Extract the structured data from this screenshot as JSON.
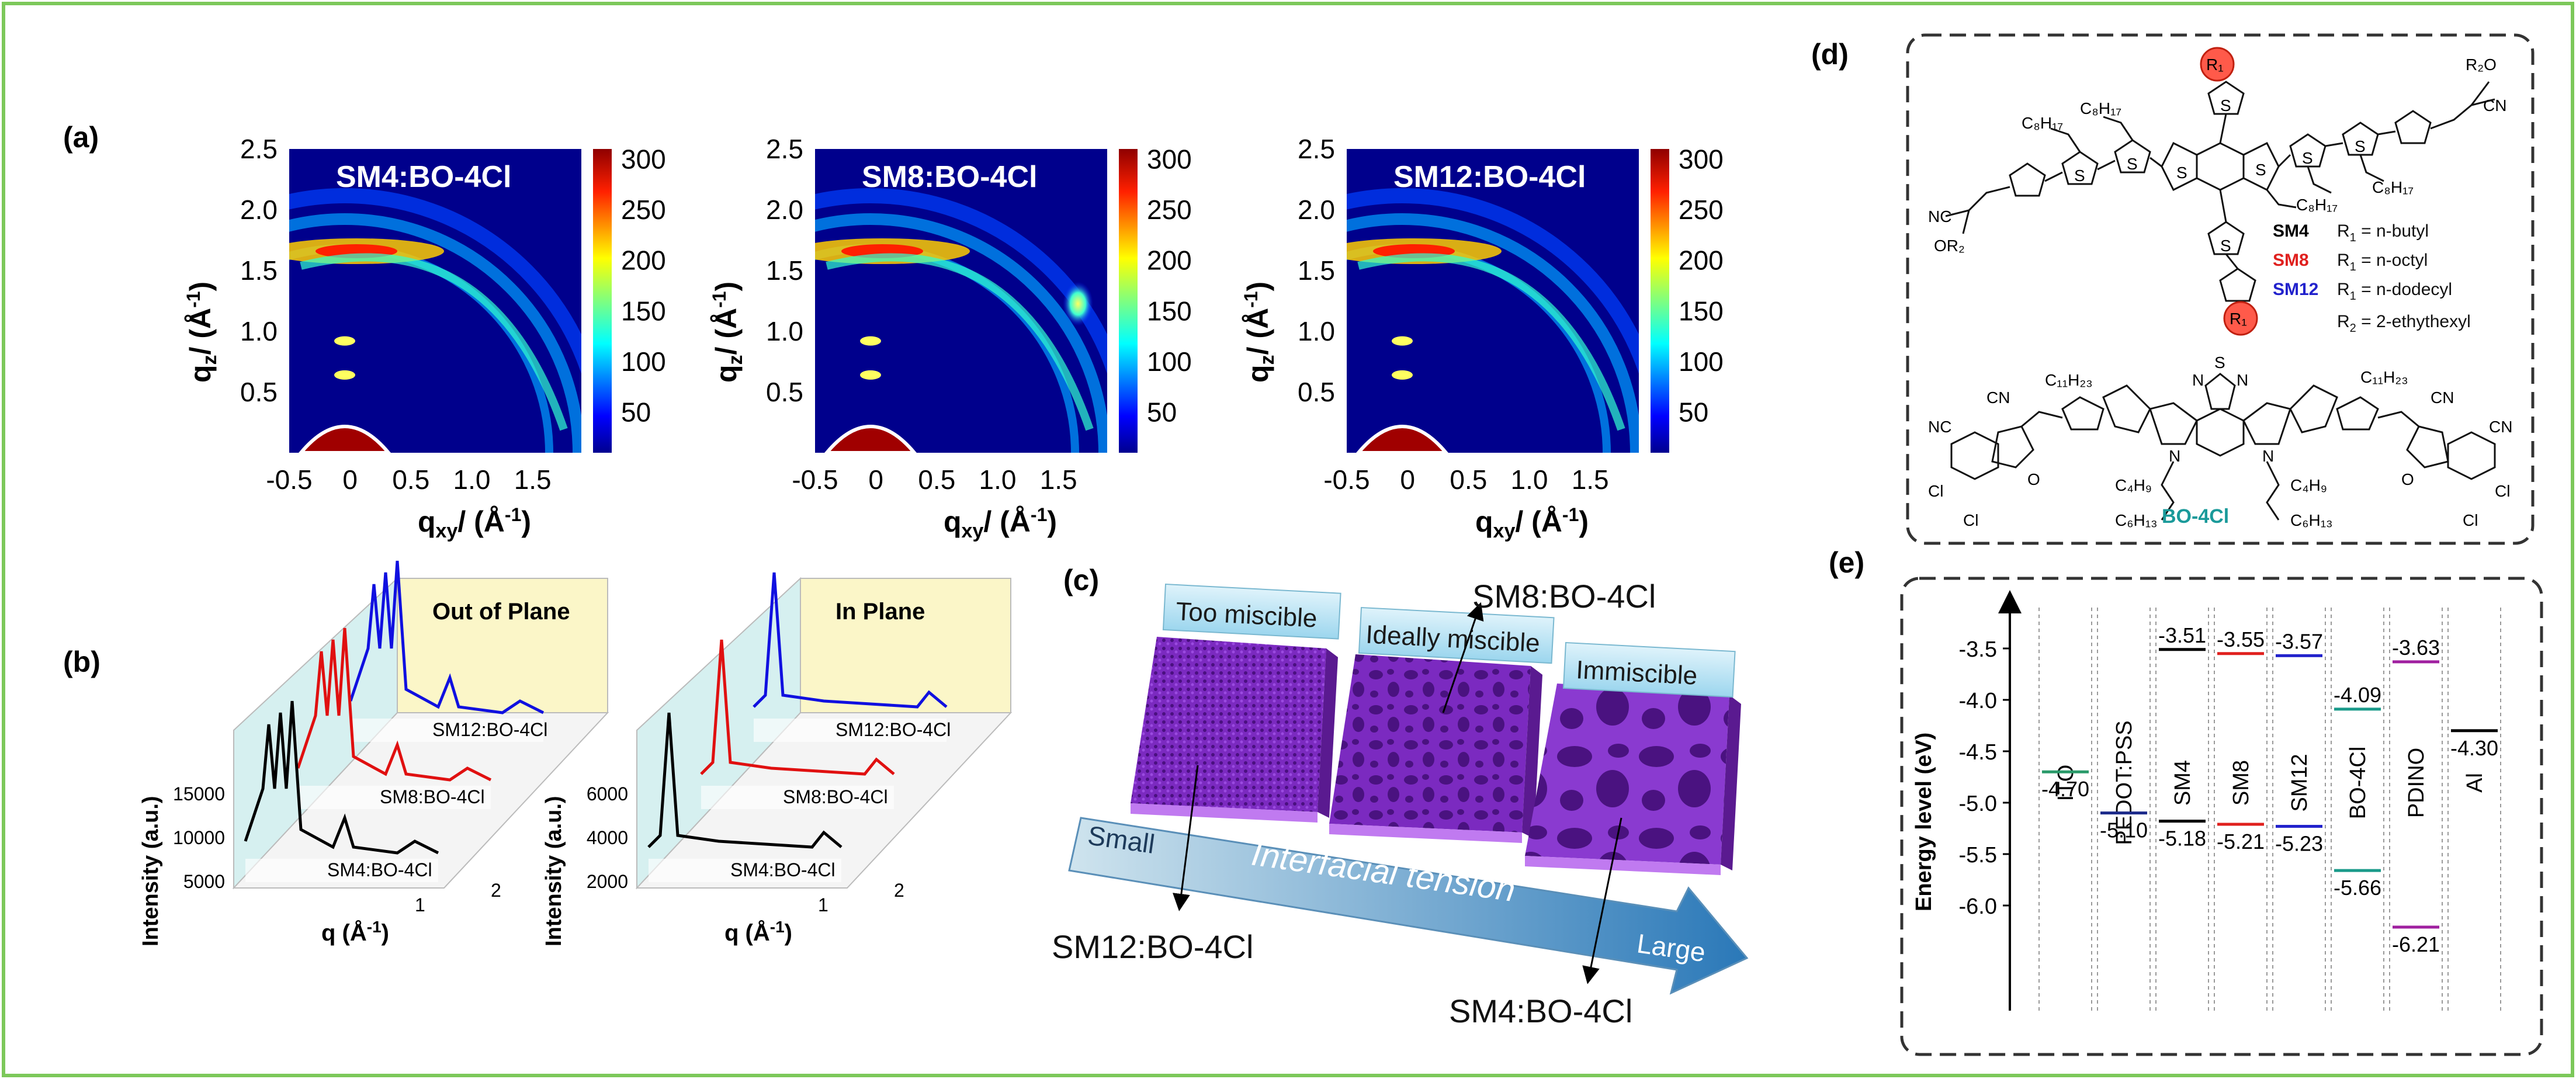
{
  "border_color": "#7cc85a",
  "panel_labels": {
    "a": "(a)",
    "b": "(b)",
    "c": "(c)",
    "d": "(d)",
    "e": "(e)"
  },
  "giwaxs": {
    "samples": [
      "SM4:BO-4Cl",
      "SM8:BO-4Cl",
      "SM12:BO-4Cl"
    ],
    "y_ticks": [
      "2.5",
      "2.0",
      "1.5",
      "1.0",
      "0.5"
    ],
    "x_ticks": [
      "-0.5",
      "0",
      "0.5",
      "1.0",
      "1.5"
    ],
    "cbar_ticks": [
      "300",
      "250",
      "200",
      "150",
      "100",
      "50"
    ],
    "x_label": "q",
    "x_label_sub": "xy",
    "x_label_unit": "/ (Å",
    "y_label": "q",
    "y_label_sub": "z",
    "y_label_unit": "/ (Å",
    "unit_exp": "-1",
    "close_paren": ")"
  },
  "profiles": {
    "out_of_plane": {
      "title": "Out of Plane",
      "traces": [
        "SM12:BO-4Cl",
        "SM8:BO-4Cl",
        "SM4:BO-4Cl"
      ],
      "z_ticks": [
        "15000",
        "10000",
        "5000"
      ],
      "q_ticks": [
        "1",
        "2"
      ]
    },
    "in_plane": {
      "title": "In Plane",
      "traces": [
        "SM12:BO-4Cl",
        "SM8:BO-4Cl",
        "SM4:BO-4Cl"
      ],
      "z_ticks": [
        "6000",
        "4000",
        "2000"
      ],
      "q_ticks": [
        "1",
        "2"
      ]
    },
    "y_axis_label": "Intensity (a.u.)",
    "x_axis_q": "q (",
    "x_axis_unit": "Å",
    "x_axis_exp": "-1",
    "x_axis_close": ")"
  },
  "schematic": {
    "labels": [
      "Too  miscible",
      "Ideally miscible",
      "Immiscible"
    ],
    "arrow_text": "Interfacial tension",
    "small": "Small",
    "large": "Large",
    "callouts": [
      "SM8:BO-4Cl",
      "SM12:BO-4Cl",
      "SM4:BO-4Cl"
    ]
  },
  "structures": {
    "legend": [
      {
        "name": "SM4",
        "r": "R",
        "sub": "1",
        "val": "= n-butyl",
        "color": "#000000"
      },
      {
        "name": "SM8",
        "r": "R",
        "sub": "1",
        "val": "= n-octyl",
        "color": "#e0201e"
      },
      {
        "name": "SM12",
        "r": "R",
        "sub": "1",
        "val": "= n-dodecyl",
        "color": "#2222cc"
      }
    ],
    "r2_line": {
      "r": "R",
      "sub": "2",
      "val": "= 2-ethythexyl"
    },
    "acceptor_name": "BO-4Cl",
    "acceptor_color": "#1a9a9a",
    "atoms": {
      "S": "S",
      "N": "N",
      "O": "O",
      "Cl": "Cl",
      "CN": "CN",
      "NC": "NC",
      "C8H17": "C₈H₁₇",
      "C11H23": "C₁₁H₂₃",
      "C4H9": "C₄H₉",
      "C6H13": "C₆H₁₃",
      "R1": "R₁",
      "R2": "R₂",
      "OR2": "OR₂",
      "R2O": "R₂O"
    }
  },
  "energy": {
    "y_label": "Energy level (eV)",
    "y_ticks": [
      "-3.5",
      "-4.0",
      "-4.5",
      "-5.0",
      "-5.5",
      "-6.0"
    ],
    "materials": [
      {
        "name": "ITO",
        "levels": [
          {
            "v": "-4.70",
            "color": "#2a9a6a"
          }
        ]
      },
      {
        "name": "PEDOT:PSS",
        "levels": [
          {
            "v": "-5.10",
            "color": "#1c2a8a"
          }
        ]
      },
      {
        "name": "SM4",
        "levels": [
          {
            "v": "-3.51",
            "color": "#000000"
          },
          {
            "v": "-5.18",
            "color": "#000000"
          }
        ]
      },
      {
        "name": "SM8",
        "levels": [
          {
            "v": "-3.55",
            "color": "#e0201e"
          },
          {
            "v": "-5.21",
            "color": "#e0201e"
          }
        ]
      },
      {
        "name": "SM12",
        "levels": [
          {
            "v": "-3.57",
            "color": "#2222cc"
          },
          {
            "v": "-5.23",
            "color": "#2222cc"
          }
        ]
      },
      {
        "name": "BO-4Cl",
        "levels": [
          {
            "v": "-4.09",
            "color": "#1a9a8a"
          },
          {
            "v": "-5.66",
            "color": "#1a9a8a"
          }
        ]
      },
      {
        "name": "PDINO",
        "levels": [
          {
            "v": "-3.63",
            "color": "#a020a0"
          },
          {
            "v": "-6.21",
            "color": "#a020a0"
          }
        ]
      },
      {
        "name": "Al",
        "levels": [
          {
            "v": "-4.30",
            "color": "#000000"
          }
        ]
      }
    ]
  }
}
